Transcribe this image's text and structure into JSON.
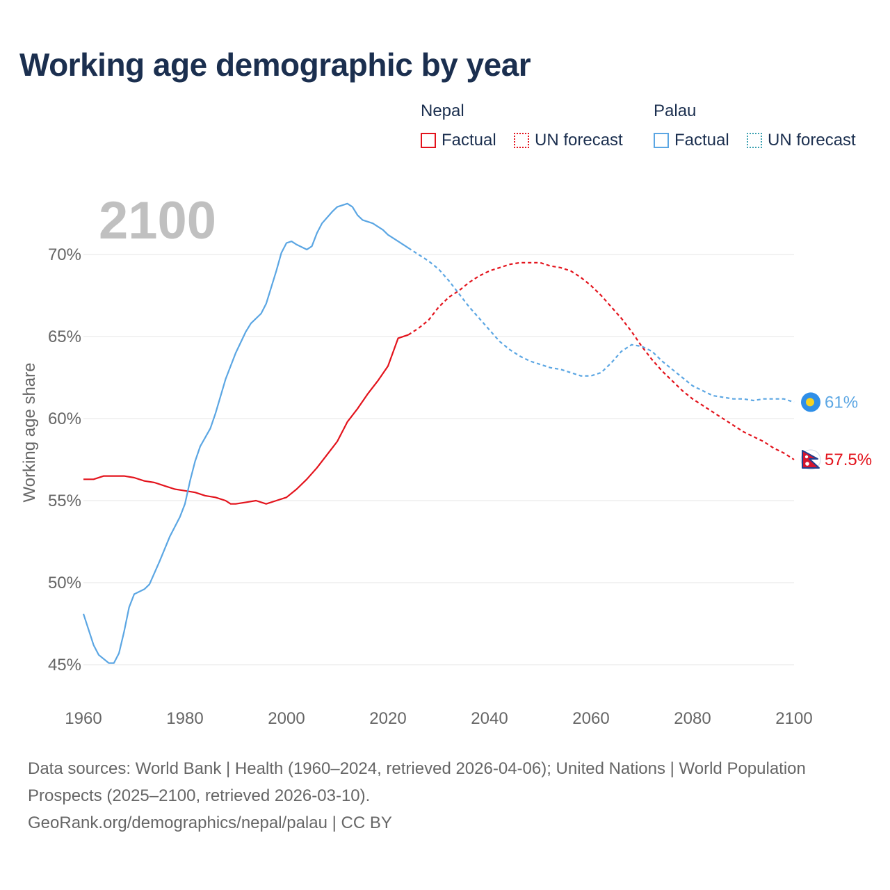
{
  "title": "Working age demographic by year",
  "legend": {
    "groups": [
      {
        "name": "Nepal",
        "factual_label": "Factual",
        "forecast_label": "UN forecast"
      },
      {
        "name": "Palau",
        "factual_label": "Factual",
        "forecast_label": "UN forecast"
      }
    ]
  },
  "year_watermark": "2100",
  "source_line1": "Data sources: World Bank | Health (1960–2024, retrieved 2026-04-06); United Nations | World Population Prospects (2025–2100, retrieved 2026-03-10).",
  "source_line2": "GeoRank.org/demographics/nepal/palau | CC BY",
  "colors": {
    "nepal": "#e3131c",
    "palau": "#5ba6e3",
    "grid": "#e6e6e6",
    "axis_text": "#666666"
  },
  "chart_data": {
    "type": "line",
    "ylabel": "Working age share",
    "xlabel": "",
    "xlim": [
      1960,
      2100
    ],
    "ylim": [
      44,
      73.5
    ],
    "x_ticks": [
      1960,
      1980,
      2000,
      2020,
      2040,
      2060,
      2080,
      2100
    ],
    "y_ticks": [
      45,
      50,
      55,
      60,
      65,
      70
    ],
    "y_tick_labels": [
      "45%",
      "50%",
      "55%",
      "60%",
      "65%",
      "70%"
    ],
    "forecast_start": 2024,
    "series": [
      {
        "name": "Nepal",
        "color": "#e3131c",
        "end_label": "57.5%",
        "end_icon": "nepal-flag-icon",
        "points": [
          [
            1960,
            56.3
          ],
          [
            1962,
            56.3
          ],
          [
            1964,
            56.5
          ],
          [
            1966,
            56.5
          ],
          [
            1968,
            56.5
          ],
          [
            1970,
            56.4
          ],
          [
            1972,
            56.2
          ],
          [
            1974,
            56.1
          ],
          [
            1976,
            55.9
          ],
          [
            1978,
            55.7
          ],
          [
            1980,
            55.6
          ],
          [
            1982,
            55.5
          ],
          [
            1984,
            55.3
          ],
          [
            1986,
            55.2
          ],
          [
            1988,
            55.0
          ],
          [
            1989,
            54.8
          ],
          [
            1990,
            54.8
          ],
          [
            1992,
            54.9
          ],
          [
            1994,
            55.0
          ],
          [
            1996,
            54.8
          ],
          [
            1998,
            55.0
          ],
          [
            2000,
            55.2
          ],
          [
            2002,
            55.7
          ],
          [
            2004,
            56.3
          ],
          [
            2006,
            57.0
          ],
          [
            2008,
            57.8
          ],
          [
            2010,
            58.6
          ],
          [
            2012,
            59.8
          ],
          [
            2014,
            60.6
          ],
          [
            2016,
            61.5
          ],
          [
            2018,
            62.3
          ],
          [
            2020,
            63.2
          ],
          [
            2022,
            64.9
          ],
          [
            2024,
            65.1
          ],
          [
            2026,
            65.5
          ],
          [
            2028,
            66.0
          ],
          [
            2030,
            66.8
          ],
          [
            2032,
            67.4
          ],
          [
            2034,
            67.8
          ],
          [
            2036,
            68.3
          ],
          [
            2038,
            68.7
          ],
          [
            2040,
            69.0
          ],
          [
            2042,
            69.2
          ],
          [
            2044,
            69.4
          ],
          [
            2046,
            69.5
          ],
          [
            2048,
            69.5
          ],
          [
            2050,
            69.5
          ],
          [
            2052,
            69.3
          ],
          [
            2054,
            69.2
          ],
          [
            2056,
            69.0
          ],
          [
            2058,
            68.6
          ],
          [
            2060,
            68.1
          ],
          [
            2062,
            67.5
          ],
          [
            2064,
            66.8
          ],
          [
            2066,
            66.1
          ],
          [
            2068,
            65.3
          ],
          [
            2070,
            64.4
          ],
          [
            2072,
            63.6
          ],
          [
            2074,
            62.9
          ],
          [
            2076,
            62.3
          ],
          [
            2078,
            61.7
          ],
          [
            2080,
            61.2
          ],
          [
            2082,
            60.8
          ],
          [
            2084,
            60.4
          ],
          [
            2086,
            60.0
          ],
          [
            2088,
            59.6
          ],
          [
            2090,
            59.2
          ],
          [
            2092,
            58.9
          ],
          [
            2094,
            58.6
          ],
          [
            2096,
            58.2
          ],
          [
            2098,
            57.9
          ],
          [
            2100,
            57.5
          ]
        ]
      },
      {
        "name": "Palau",
        "color": "#5ba6e3",
        "end_label": "61%",
        "end_icon": "palau-flag-icon",
        "points": [
          [
            1960,
            48.1
          ],
          [
            1962,
            46.2
          ],
          [
            1963,
            45.6
          ],
          [
            1965,
            45.1
          ],
          [
            1966,
            45.1
          ],
          [
            1967,
            45.7
          ],
          [
            1968,
            47.0
          ],
          [
            1969,
            48.5
          ],
          [
            1970,
            49.3
          ],
          [
            1972,
            49.6
          ],
          [
            1973,
            49.9
          ],
          [
            1975,
            51.3
          ],
          [
            1977,
            52.8
          ],
          [
            1979,
            54.0
          ],
          [
            1980,
            54.8
          ],
          [
            1981,
            56.2
          ],
          [
            1982,
            57.4
          ],
          [
            1983,
            58.3
          ],
          [
            1985,
            59.4
          ],
          [
            1986,
            60.3
          ],
          [
            1988,
            62.4
          ],
          [
            1990,
            64.0
          ],
          [
            1992,
            65.3
          ],
          [
            1993,
            65.8
          ],
          [
            1995,
            66.4
          ],
          [
            1996,
            67.0
          ],
          [
            1998,
            69.0
          ],
          [
            1999,
            70.1
          ],
          [
            2000,
            70.7
          ],
          [
            2001,
            70.8
          ],
          [
            2002,
            70.6
          ],
          [
            2004,
            70.3
          ],
          [
            2005,
            70.5
          ],
          [
            2006,
            71.3
          ],
          [
            2007,
            71.9
          ],
          [
            2009,
            72.6
          ],
          [
            2010,
            72.9
          ],
          [
            2012,
            73.1
          ],
          [
            2013,
            72.9
          ],
          [
            2014,
            72.4
          ],
          [
            2015,
            72.1
          ],
          [
            2017,
            71.9
          ],
          [
            2019,
            71.5
          ],
          [
            2020,
            71.2
          ],
          [
            2022,
            70.8
          ],
          [
            2024,
            70.4
          ],
          [
            2026,
            70.0
          ],
          [
            2028,
            69.6
          ],
          [
            2030,
            69.1
          ],
          [
            2032,
            68.4
          ],
          [
            2034,
            67.6
          ],
          [
            2036,
            66.8
          ],
          [
            2038,
            66.1
          ],
          [
            2040,
            65.4
          ],
          [
            2042,
            64.7
          ],
          [
            2044,
            64.2
          ],
          [
            2046,
            63.8
          ],
          [
            2048,
            63.5
          ],
          [
            2050,
            63.3
          ],
          [
            2052,
            63.1
          ],
          [
            2054,
            63.0
          ],
          [
            2056,
            62.8
          ],
          [
            2058,
            62.6
          ],
          [
            2060,
            62.6
          ],
          [
            2062,
            62.8
          ],
          [
            2064,
            63.4
          ],
          [
            2066,
            64.1
          ],
          [
            2068,
            64.5
          ],
          [
            2070,
            64.4
          ],
          [
            2072,
            64.1
          ],
          [
            2074,
            63.5
          ],
          [
            2076,
            63.0
          ],
          [
            2078,
            62.5
          ],
          [
            2080,
            62.0
          ],
          [
            2082,
            61.7
          ],
          [
            2084,
            61.4
          ],
          [
            2086,
            61.3
          ],
          [
            2088,
            61.2
          ],
          [
            2090,
            61.2
          ],
          [
            2092,
            61.1
          ],
          [
            2094,
            61.2
          ],
          [
            2096,
            61.2
          ],
          [
            2098,
            61.2
          ],
          [
            2100,
            61.0
          ]
        ]
      }
    ]
  }
}
